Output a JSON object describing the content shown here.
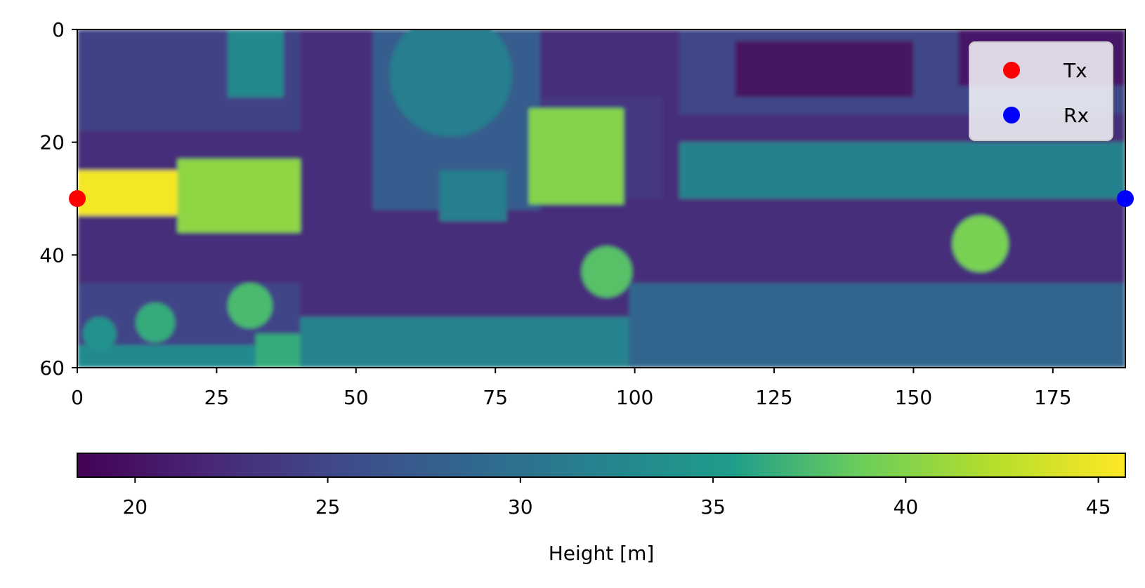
{
  "chart_data": [
    {
      "type": "heatmap",
      "title": "",
      "xlabel": "",
      "ylabel": "",
      "x_range": [
        0,
        188
      ],
      "y_range": [
        0,
        60
      ],
      "y_inverted": true,
      "x_ticks": [
        0,
        25,
        50,
        75,
        100,
        125,
        150,
        175
      ],
      "y_ticks": [
        0,
        20,
        40,
        60
      ],
      "colormap": "viridis",
      "value_range": [
        18.5,
        45.7
      ],
      "grid": false,
      "legend_position": "top-right",
      "regions": [
        {
          "shape": "rect",
          "x": [
            0,
            188
          ],
          "y": [
            0,
            60
          ],
          "value": 22.5
        },
        {
          "shape": "rect",
          "x": [
            0,
            40
          ],
          "y": [
            0,
            18
          ],
          "value": 24.5
        },
        {
          "shape": "rect",
          "x": [
            0,
            40
          ],
          "y": [
            45,
            60
          ],
          "value": 24.8
        },
        {
          "shape": "rect",
          "x": [
            0,
            40
          ],
          "y": [
            56,
            60
          ],
          "value": 33.0
        },
        {
          "shape": "rect",
          "x": [
            32,
            40
          ],
          "y": [
            54,
            60
          ],
          "value": 36.5
        },
        {
          "shape": "rect",
          "x": [
            27,
            37
          ],
          "y": [
            0,
            12
          ],
          "value": 33.0
        },
        {
          "shape": "rect",
          "x": [
            53,
            83
          ],
          "y": [
            0,
            32
          ],
          "value": 27.5
        },
        {
          "shape": "circle",
          "cx": 67,
          "cy": 8,
          "r": 11,
          "value": 31.5
        },
        {
          "shape": "rect",
          "x": [
            65,
            77
          ],
          "y": [
            25,
            34
          ],
          "value": 31.5
        },
        {
          "shape": "rect",
          "x": [
            83,
            105
          ],
          "y": [
            12,
            30
          ],
          "value": 23.5
        },
        {
          "shape": "rect",
          "x": [
            81,
            98
          ],
          "y": [
            14,
            31
          ],
          "value": 40.0
        },
        {
          "shape": "rect",
          "x": [
            108,
            188
          ],
          "y": [
            0,
            15
          ],
          "value": 25.0
        },
        {
          "shape": "rect",
          "x": [
            118,
            150
          ],
          "y": [
            2,
            12
          ],
          "value": 20.0
        },
        {
          "shape": "rect",
          "x": [
            158,
            188
          ],
          "y": [
            0,
            10
          ],
          "value": 20.5
        },
        {
          "shape": "rect",
          "x": [
            108,
            188
          ],
          "y": [
            20,
            30
          ],
          "value": 31.8
        },
        {
          "shape": "rect",
          "x": [
            40,
            99
          ],
          "y": [
            51,
            60
          ],
          "value": 32.0
        },
        {
          "shape": "rect",
          "x": [
            99,
            188
          ],
          "y": [
            45,
            60
          ],
          "value": 28.5
        },
        {
          "shape": "rect",
          "x": [
            0,
            18
          ],
          "y": [
            25,
            33
          ],
          "value": 45.2
        },
        {
          "shape": "rect",
          "x": [
            18,
            40
          ],
          "y": [
            23,
            36
          ],
          "value": 40.5
        },
        {
          "shape": "circle",
          "cx": 95,
          "cy": 43,
          "r": 4.5,
          "value": 38.0
        },
        {
          "shape": "circle",
          "cx": 162,
          "cy": 38,
          "r": 5,
          "value": 39.5
        },
        {
          "shape": "circle",
          "cx": 31,
          "cy": 49,
          "r": 4,
          "value": 37.5
        },
        {
          "shape": "circle",
          "cx": 14,
          "cy": 52,
          "r": 3.5,
          "value": 36.5
        },
        {
          "shape": "circle",
          "cx": 4,
          "cy": 54,
          "r": 3,
          "value": 34.0
        }
      ],
      "markers": [
        {
          "name": "Tx",
          "x": 0,
          "y": 30,
          "color": "#ff0000"
        },
        {
          "name": "Rx",
          "x": 188,
          "y": 30,
          "color": "#0000ff"
        }
      ]
    },
    {
      "type": "colorbar",
      "label": "Height [m]",
      "range": [
        18.5,
        45.7
      ],
      "ticks": [
        20,
        25,
        30,
        35,
        40,
        45
      ],
      "orientation": "horizontal",
      "colormap": "viridis"
    }
  ],
  "colors": {
    "axis": "#000000",
    "legend_background": "#ffffff",
    "legend_border": "#cccccc",
    "tx_marker": "#ff0000",
    "rx_marker": "#0000ff"
  }
}
